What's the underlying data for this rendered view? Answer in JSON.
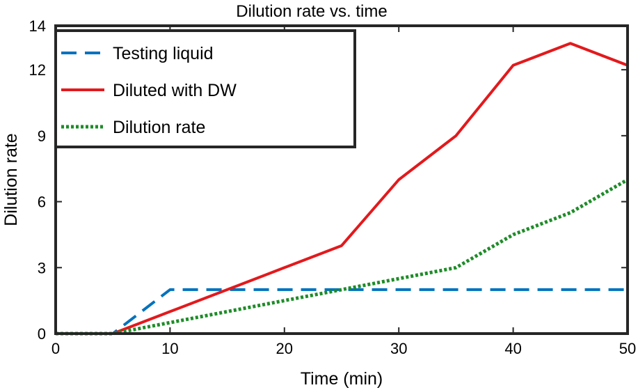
{
  "chart_data": {
    "type": "line",
    "title": "Dilution rate vs. time",
    "xlabel": "Time (min)",
    "ylabel": "Dilution rate",
    "xlim": [
      0,
      50
    ],
    "ylim": [
      0,
      14
    ],
    "xticks": [
      0,
      10,
      20,
      30,
      40,
      50
    ],
    "yticks": [
      0,
      3,
      6,
      9,
      12,
      14
    ],
    "grid": false,
    "legend_position": "top-left",
    "series": [
      {
        "name": "Testing liquid",
        "style": "dashed",
        "color": "#0072BD",
        "x": [
          0,
          5,
          10,
          15,
          20,
          25,
          30,
          35,
          40,
          45,
          50
        ],
        "y": [
          0,
          0,
          2,
          2,
          2,
          2,
          2,
          2,
          2,
          2,
          2
        ]
      },
      {
        "name": "Diluted with DW",
        "style": "solid",
        "color": "#E3191C",
        "x": [
          0,
          5,
          10,
          15,
          20,
          25,
          30,
          35,
          40,
          45,
          50
        ],
        "y": [
          0,
          0,
          1,
          2,
          3,
          4,
          7,
          9,
          12.2,
          13.2,
          12.2
        ]
      },
      {
        "name": "Dilution rate",
        "style": "dotted",
        "color": "#1E8C28",
        "x": [
          0,
          5,
          10,
          15,
          20,
          25,
          30,
          35,
          40,
          45,
          50
        ],
        "y": [
          0,
          0,
          0.5,
          1,
          1.5,
          2,
          2.5,
          3,
          4.5,
          5.5,
          7
        ]
      }
    ]
  }
}
